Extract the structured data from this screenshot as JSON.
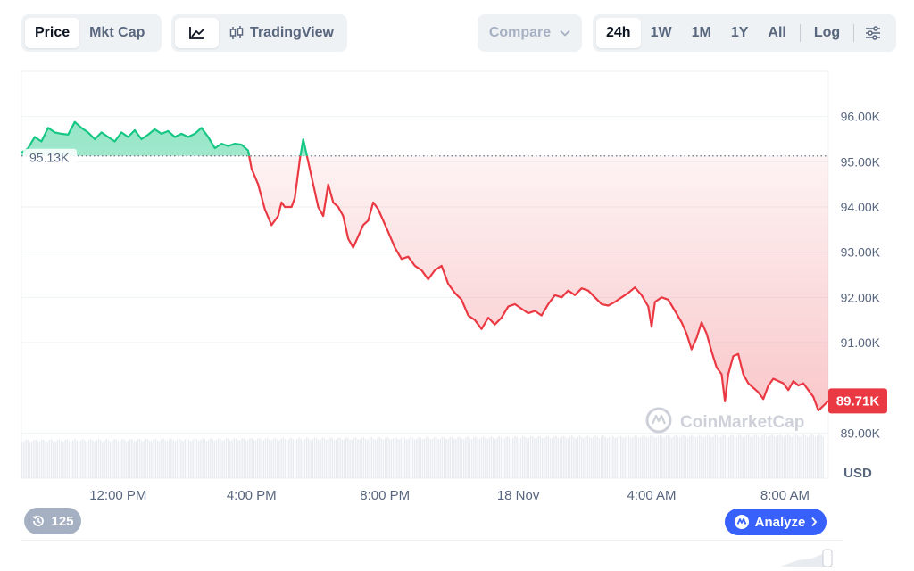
{
  "toolbar": {
    "view_tabs": [
      {
        "label": "Price",
        "active": true
      },
      {
        "label": "Mkt Cap",
        "active": false
      }
    ],
    "chart_type": {
      "line_icon": "line-chart-icon",
      "tradingview_icon": "candlestick-icon",
      "tradingview_label": "TradingView"
    },
    "compare_label": "Compare",
    "ranges": [
      {
        "label": "24h",
        "active": true
      },
      {
        "label": "1W",
        "active": false
      },
      {
        "label": "1M",
        "active": false
      },
      {
        "label": "1Y",
        "active": false
      },
      {
        "label": "All",
        "active": false
      }
    ],
    "log_label": "Log",
    "settings_icon": "sliders-icon"
  },
  "history_count": "125",
  "analyze_label": "Analyze",
  "chart_data": {
    "type": "line",
    "currency": "USD",
    "watermark": "CoinMarketCap",
    "open_label": "95.13K",
    "open_value": 95.13,
    "current_label": "89.71K",
    "current_value": 89.71,
    "ylim": [
      88.0,
      97.0
    ],
    "y_ticks": [
      {
        "value": 96,
        "label": "96.00K"
      },
      {
        "value": 95,
        "label": "95.00K"
      },
      {
        "value": 94,
        "label": "94.00K"
      },
      {
        "value": 93,
        "label": "93.00K"
      },
      {
        "value": 92,
        "label": "92.00K"
      },
      {
        "value": 91,
        "label": "91.00K"
      },
      {
        "value": 89,
        "label": "89.00K"
      }
    ],
    "x_range_hours": [
      9.1,
      33.3
    ],
    "x_ticks": [
      {
        "hour": 12,
        "label": "12:00 PM"
      },
      {
        "hour": 16,
        "label": "4:00 PM"
      },
      {
        "hour": 20,
        "label": "8:00 PM"
      },
      {
        "hour": 24,
        "label": "18 Nov"
      },
      {
        "hour": 28,
        "label": "4:00 AM"
      },
      {
        "hour": 32,
        "label": "8:00 AM"
      }
    ],
    "colors": {
      "up": "#16c784",
      "down": "#ea3943"
    },
    "series": [
      {
        "points": [
          [
            9.1,
            95.2
          ],
          [
            9.3,
            95.3
          ],
          [
            9.5,
            95.55
          ],
          [
            9.7,
            95.45
          ],
          [
            9.9,
            95.75
          ],
          [
            10.1,
            95.65
          ],
          [
            10.3,
            95.62
          ],
          [
            10.5,
            95.6
          ],
          [
            10.7,
            95.88
          ],
          [
            10.9,
            95.75
          ],
          [
            11.1,
            95.65
          ],
          [
            11.3,
            95.5
          ],
          [
            11.5,
            95.65
          ],
          [
            11.7,
            95.55
          ],
          [
            11.9,
            95.45
          ],
          [
            12.1,
            95.65
          ],
          [
            12.3,
            95.55
          ],
          [
            12.5,
            95.7
          ],
          [
            12.7,
            95.5
          ],
          [
            12.9,
            95.6
          ],
          [
            13.1,
            95.72
          ],
          [
            13.3,
            95.62
          ],
          [
            13.5,
            95.68
          ],
          [
            13.7,
            95.55
          ],
          [
            13.9,
            95.62
          ],
          [
            14.1,
            95.55
          ],
          [
            14.3,
            95.62
          ],
          [
            14.5,
            95.75
          ],
          [
            14.7,
            95.55
          ],
          [
            14.9,
            95.3
          ],
          [
            15.1,
            95.4
          ],
          [
            15.3,
            95.35
          ],
          [
            15.5,
            95.4
          ],
          [
            15.7,
            95.38
          ],
          [
            15.9,
            95.25
          ],
          [
            16.0,
            94.85
          ],
          [
            16.2,
            94.5
          ],
          [
            16.4,
            93.95
          ],
          [
            16.6,
            93.6
          ],
          [
            16.8,
            93.8
          ],
          [
            16.9,
            94.1
          ],
          [
            17.0,
            94.0
          ],
          [
            17.2,
            94.0
          ],
          [
            17.3,
            94.2
          ],
          [
            17.45,
            95.05
          ],
          [
            17.55,
            95.5
          ],
          [
            17.7,
            95.0
          ],
          [
            17.85,
            94.5
          ],
          [
            18.0,
            94.0
          ],
          [
            18.15,
            93.8
          ],
          [
            18.3,
            94.5
          ],
          [
            18.45,
            94.1
          ],
          [
            18.6,
            94.0
          ],
          [
            18.75,
            93.8
          ],
          [
            18.9,
            93.3
          ],
          [
            19.05,
            93.1
          ],
          [
            19.2,
            93.35
          ],
          [
            19.35,
            93.6
          ],
          [
            19.5,
            93.7
          ],
          [
            19.65,
            94.1
          ],
          [
            19.8,
            93.95
          ],
          [
            19.95,
            93.7
          ],
          [
            20.1,
            93.45
          ],
          [
            20.3,
            93.1
          ],
          [
            20.5,
            92.85
          ],
          [
            20.7,
            92.9
          ],
          [
            20.9,
            92.7
          ],
          [
            21.1,
            92.6
          ],
          [
            21.3,
            92.4
          ],
          [
            21.5,
            92.6
          ],
          [
            21.7,
            92.7
          ],
          [
            21.9,
            92.3
          ],
          [
            22.1,
            92.1
          ],
          [
            22.3,
            91.95
          ],
          [
            22.5,
            91.6
          ],
          [
            22.7,
            91.5
          ],
          [
            22.9,
            91.3
          ],
          [
            23.1,
            91.55
          ],
          [
            23.3,
            91.4
          ],
          [
            23.5,
            91.55
          ],
          [
            23.7,
            91.8
          ],
          [
            23.9,
            91.85
          ],
          [
            24.1,
            91.75
          ],
          [
            24.3,
            91.65
          ],
          [
            24.5,
            91.7
          ],
          [
            24.7,
            91.6
          ],
          [
            24.9,
            91.85
          ],
          [
            25.1,
            92.05
          ],
          [
            25.3,
            92.0
          ],
          [
            25.5,
            92.15
          ],
          [
            25.7,
            92.05
          ],
          [
            25.9,
            92.2
          ],
          [
            26.1,
            92.15
          ],
          [
            26.3,
            92.0
          ],
          [
            26.5,
            91.85
          ],
          [
            26.7,
            91.82
          ],
          [
            26.9,
            91.9
          ],
          [
            27.1,
            92.0
          ],
          [
            27.3,
            92.1
          ],
          [
            27.5,
            92.22
          ],
          [
            27.7,
            92.05
          ],
          [
            27.9,
            91.8
          ],
          [
            28.0,
            91.35
          ],
          [
            28.1,
            91.9
          ],
          [
            28.3,
            92.0
          ],
          [
            28.5,
            91.95
          ],
          [
            28.7,
            91.7
          ],
          [
            28.9,
            91.45
          ],
          [
            29.05,
            91.2
          ],
          [
            29.2,
            90.85
          ],
          [
            29.35,
            91.1
          ],
          [
            29.5,
            91.45
          ],
          [
            29.65,
            91.2
          ],
          [
            29.8,
            90.8
          ],
          [
            29.95,
            90.45
          ],
          [
            30.1,
            90.3
          ],
          [
            30.2,
            89.7
          ],
          [
            30.3,
            90.3
          ],
          [
            30.45,
            90.7
          ],
          [
            30.6,
            90.75
          ],
          [
            30.75,
            90.3
          ],
          [
            30.9,
            90.1
          ],
          [
            31.05,
            90.0
          ],
          [
            31.2,
            89.9
          ],
          [
            31.35,
            89.75
          ],
          [
            31.5,
            90.05
          ],
          [
            31.65,
            90.2
          ],
          [
            31.8,
            90.15
          ],
          [
            31.95,
            90.1
          ],
          [
            32.1,
            89.95
          ],
          [
            32.25,
            90.15
          ],
          [
            32.4,
            90.05
          ],
          [
            32.55,
            90.1
          ],
          [
            32.7,
            89.95
          ],
          [
            32.85,
            89.8
          ],
          [
            33.0,
            89.5
          ],
          [
            33.15,
            89.6
          ],
          [
            33.3,
            89.71
          ]
        ]
      }
    ]
  }
}
